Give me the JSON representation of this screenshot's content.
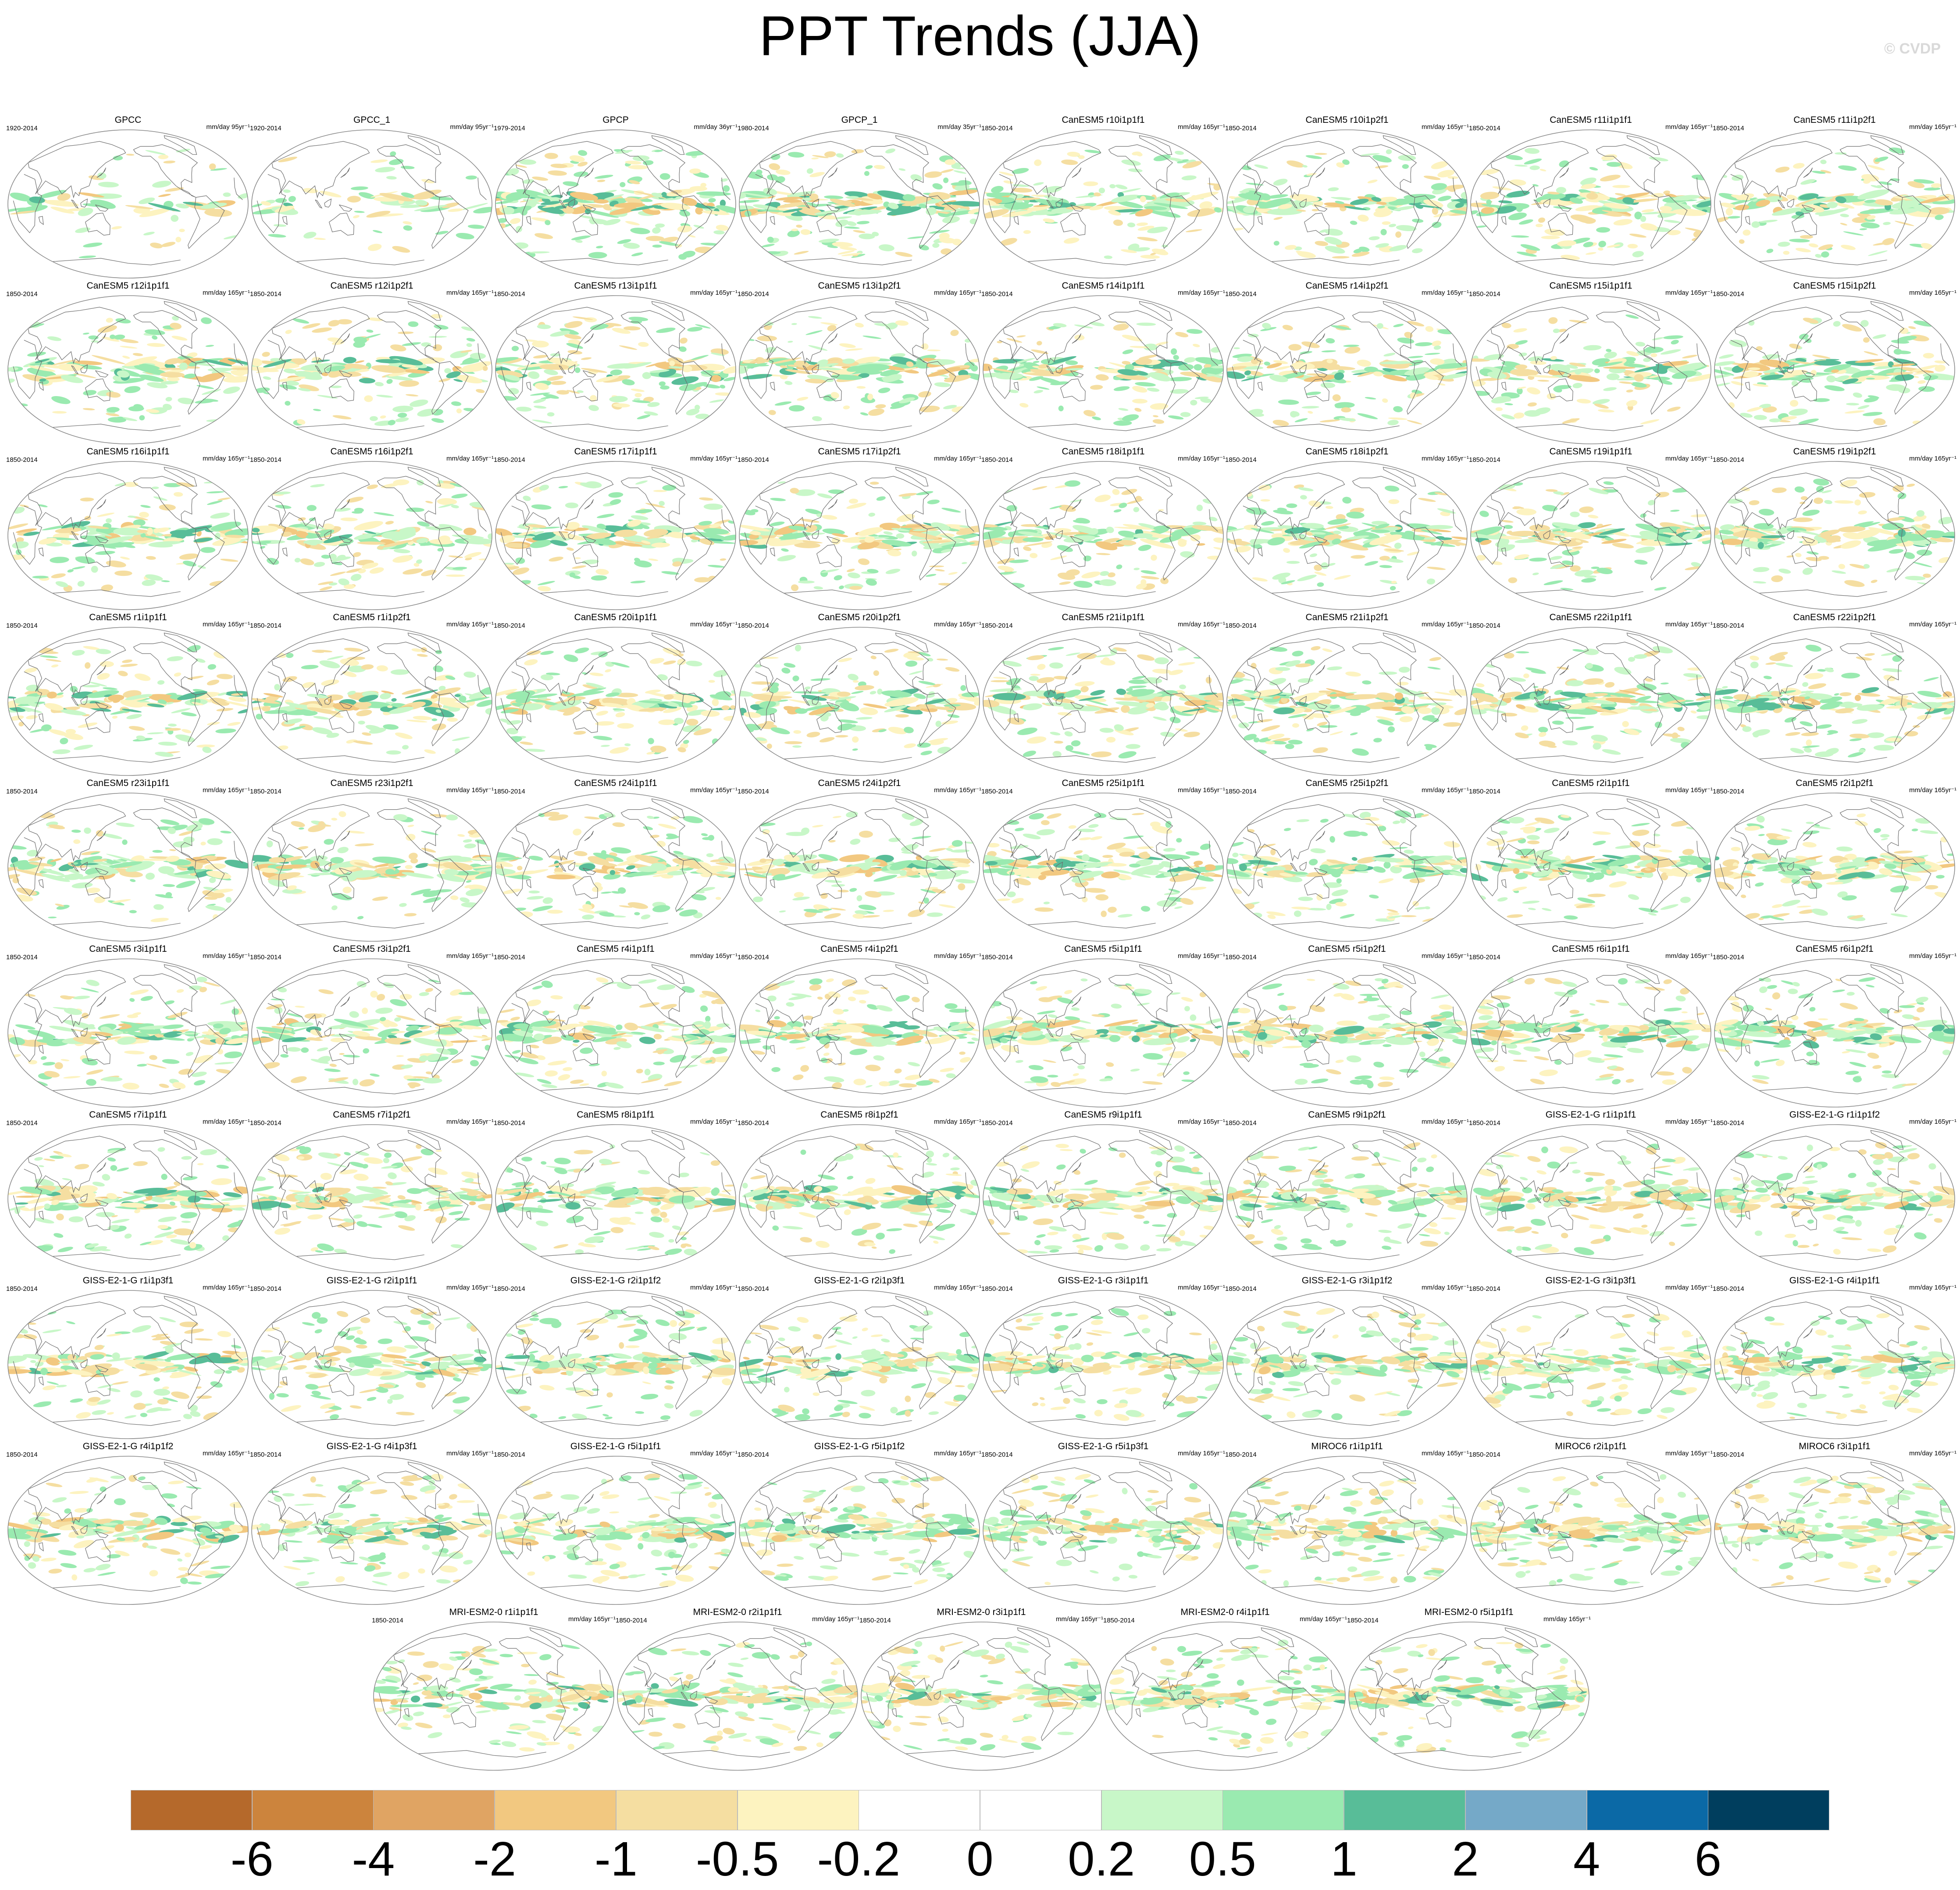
{
  "title": "PPT Trends (JJA)",
  "watermark": "© CVDP",
  "colorbar": {
    "labels": [
      "-6",
      "-4",
      "-2",
      "-1",
      "-0.5",
      "-0.2",
      "0",
      "0.2",
      "0.5",
      "1",
      "2",
      "4",
      "6"
    ],
    "colors": [
      "#b5692b",
      "#cc843d",
      "#e0a463",
      "#f2c880",
      "#f5dea1",
      "#fdf3c0",
      "#ffffff",
      "#ffffff",
      "#c8f7c8",
      "#9aeab0",
      "#58bd98",
      "#75a9c8",
      "#0b69a6",
      "#003e5e"
    ]
  },
  "chart_data": {
    "type": "map_panels",
    "variable": "PPT Trends (JJA)",
    "panels": [
      {
        "title": "GPCC",
        "period": "1920-2014",
        "units": "mm/day 95yr⁻¹"
      },
      {
        "title": "GPCC_1",
        "period": "1920-2014",
        "units": "mm/day 95yr⁻¹"
      },
      {
        "title": "GPCP",
        "period": "1979-2014",
        "units": "mm/day 36yr⁻¹"
      },
      {
        "title": "GPCP_1",
        "period": "1980-2014",
        "units": "mm/day 35yr⁻¹"
      },
      {
        "title": "CanESM5 r10i1p1f1",
        "period": "1850-2014",
        "units": "mm/day 165yr⁻¹"
      },
      {
        "title": "CanESM5 r10i1p2f1",
        "period": "1850-2014",
        "units": "mm/day 165yr⁻¹"
      },
      {
        "title": "CanESM5 r11i1p1f1",
        "period": "1850-2014",
        "units": "mm/day 165yr⁻¹"
      },
      {
        "title": "CanESM5 r11i1p2f1",
        "period": "1850-2014",
        "units": "mm/day 165yr⁻¹"
      },
      {
        "title": "CanESM5 r12i1p1f1",
        "period": "1850-2014",
        "units": "mm/day 165yr⁻¹"
      },
      {
        "title": "CanESM5 r12i1p2f1",
        "period": "1850-2014",
        "units": "mm/day 165yr⁻¹"
      },
      {
        "title": "CanESM5 r13i1p1f1",
        "period": "1850-2014",
        "units": "mm/day 165yr⁻¹"
      },
      {
        "title": "CanESM5 r13i1p2f1",
        "period": "1850-2014",
        "units": "mm/day 165yr⁻¹"
      },
      {
        "title": "CanESM5 r14i1p1f1",
        "period": "1850-2014",
        "units": "mm/day 165yr⁻¹"
      },
      {
        "title": "CanESM5 r14i1p2f1",
        "period": "1850-2014",
        "units": "mm/day 165yr⁻¹"
      },
      {
        "title": "CanESM5 r15i1p1f1",
        "period": "1850-2014",
        "units": "mm/day 165yr⁻¹"
      },
      {
        "title": "CanESM5 r15i1p2f1",
        "period": "1850-2014",
        "units": "mm/day 165yr⁻¹"
      },
      {
        "title": "CanESM5 r16i1p1f1",
        "period": "1850-2014",
        "units": "mm/day 165yr⁻¹"
      },
      {
        "title": "CanESM5 r16i1p2f1",
        "period": "1850-2014",
        "units": "mm/day 165yr⁻¹"
      },
      {
        "title": "CanESM5 r17i1p1f1",
        "period": "1850-2014",
        "units": "mm/day 165yr⁻¹"
      },
      {
        "title": "CanESM5 r17i1p2f1",
        "period": "1850-2014",
        "units": "mm/day 165yr⁻¹"
      },
      {
        "title": "CanESM5 r18i1p1f1",
        "period": "1850-2014",
        "units": "mm/day 165yr⁻¹"
      },
      {
        "title": "CanESM5 r18i1p2f1",
        "period": "1850-2014",
        "units": "mm/day 165yr⁻¹"
      },
      {
        "title": "CanESM5 r19i1p1f1",
        "period": "1850-2014",
        "units": "mm/day 165yr⁻¹"
      },
      {
        "title": "CanESM5 r19i1p2f1",
        "period": "1850-2014",
        "units": "mm/day 165yr⁻¹"
      },
      {
        "title": "CanESM5 r1i1p1f1",
        "period": "1850-2014",
        "units": "mm/day 165yr⁻¹"
      },
      {
        "title": "CanESM5 r1i1p2f1",
        "period": "1850-2014",
        "units": "mm/day 165yr⁻¹"
      },
      {
        "title": "CanESM5 r20i1p1f1",
        "period": "1850-2014",
        "units": "mm/day 165yr⁻¹"
      },
      {
        "title": "CanESM5 r20i1p2f1",
        "period": "1850-2014",
        "units": "mm/day 165yr⁻¹"
      },
      {
        "title": "CanESM5 r21i1p1f1",
        "period": "1850-2014",
        "units": "mm/day 165yr⁻¹"
      },
      {
        "title": "CanESM5 r21i1p2f1",
        "period": "1850-2014",
        "units": "mm/day 165yr⁻¹"
      },
      {
        "title": "CanESM5 r22i1p1f1",
        "period": "1850-2014",
        "units": "mm/day 165yr⁻¹"
      },
      {
        "title": "CanESM5 r22i1p2f1",
        "period": "1850-2014",
        "units": "mm/day 165yr⁻¹"
      },
      {
        "title": "CanESM5 r23i1p1f1",
        "period": "1850-2014",
        "units": "mm/day 165yr⁻¹"
      },
      {
        "title": "CanESM5 r23i1p2f1",
        "period": "1850-2014",
        "units": "mm/day 165yr⁻¹"
      },
      {
        "title": "CanESM5 r24i1p1f1",
        "period": "1850-2014",
        "units": "mm/day 165yr⁻¹"
      },
      {
        "title": "CanESM5 r24i1p2f1",
        "period": "1850-2014",
        "units": "mm/day 165yr⁻¹"
      },
      {
        "title": "CanESM5 r25i1p1f1",
        "period": "1850-2014",
        "units": "mm/day 165yr⁻¹"
      },
      {
        "title": "CanESM5 r25i1p2f1",
        "period": "1850-2014",
        "units": "mm/day 165yr⁻¹"
      },
      {
        "title": "CanESM5 r2i1p1f1",
        "period": "1850-2014",
        "units": "mm/day 165yr⁻¹"
      },
      {
        "title": "CanESM5 r2i1p2f1",
        "period": "1850-2014",
        "units": "mm/day 165yr⁻¹"
      },
      {
        "title": "CanESM5 r3i1p1f1",
        "period": "1850-2014",
        "units": "mm/day 165yr⁻¹"
      },
      {
        "title": "CanESM5 r3i1p2f1",
        "period": "1850-2014",
        "units": "mm/day 165yr⁻¹"
      },
      {
        "title": "CanESM5 r4i1p1f1",
        "period": "1850-2014",
        "units": "mm/day 165yr⁻¹"
      },
      {
        "title": "CanESM5 r4i1p2f1",
        "period": "1850-2014",
        "units": "mm/day 165yr⁻¹"
      },
      {
        "title": "CanESM5 r5i1p1f1",
        "period": "1850-2014",
        "units": "mm/day 165yr⁻¹"
      },
      {
        "title": "CanESM5 r5i1p2f1",
        "period": "1850-2014",
        "units": "mm/day 165yr⁻¹"
      },
      {
        "title": "CanESM5 r6i1p1f1",
        "period": "1850-2014",
        "units": "mm/day 165yr⁻¹"
      },
      {
        "title": "CanESM5 r6i1p2f1",
        "period": "1850-2014",
        "units": "mm/day 165yr⁻¹"
      },
      {
        "title": "CanESM5 r7i1p1f1",
        "period": "1850-2014",
        "units": "mm/day 165yr⁻¹"
      },
      {
        "title": "CanESM5 r7i1p2f1",
        "period": "1850-2014",
        "units": "mm/day 165yr⁻¹"
      },
      {
        "title": "CanESM5 r8i1p1f1",
        "period": "1850-2014",
        "units": "mm/day 165yr⁻¹"
      },
      {
        "title": "CanESM5 r8i1p2f1",
        "period": "1850-2014",
        "units": "mm/day 165yr⁻¹"
      },
      {
        "title": "CanESM5 r9i1p1f1",
        "period": "1850-2014",
        "units": "mm/day 165yr⁻¹"
      },
      {
        "title": "CanESM5 r9i1p2f1",
        "period": "1850-2014",
        "units": "mm/day 165yr⁻¹"
      },
      {
        "title": "GISS-E2-1-G r1i1p1f1",
        "period": "1850-2014",
        "units": "mm/day 165yr⁻¹"
      },
      {
        "title": "GISS-E2-1-G r1i1p1f2",
        "period": "1850-2014",
        "units": "mm/day 165yr⁻¹"
      },
      {
        "title": "GISS-E2-1-G r1i1p3f1",
        "period": "1850-2014",
        "units": "mm/day 165yr⁻¹"
      },
      {
        "title": "GISS-E2-1-G r2i1p1f1",
        "period": "1850-2014",
        "units": "mm/day 165yr⁻¹"
      },
      {
        "title": "GISS-E2-1-G r2i1p1f2",
        "period": "1850-2014",
        "units": "mm/day 165yr⁻¹"
      },
      {
        "title": "GISS-E2-1-G r2i1p3f1",
        "period": "1850-2014",
        "units": "mm/day 165yr⁻¹"
      },
      {
        "title": "GISS-E2-1-G r3i1p1f1",
        "period": "1850-2014",
        "units": "mm/day 165yr⁻¹"
      },
      {
        "title": "GISS-E2-1-G r3i1p1f2",
        "period": "1850-2014",
        "units": "mm/day 165yr⁻¹"
      },
      {
        "title": "GISS-E2-1-G r3i1p3f1",
        "period": "1850-2014",
        "units": "mm/day 165yr⁻¹"
      },
      {
        "title": "GISS-E2-1-G r4i1p1f1",
        "period": "1850-2014",
        "units": "mm/day 165yr⁻¹"
      },
      {
        "title": "GISS-E2-1-G r4i1p1f2",
        "period": "1850-2014",
        "units": "mm/day 165yr⁻¹"
      },
      {
        "title": "GISS-E2-1-G r4i1p3f1",
        "period": "1850-2014",
        "units": "mm/day 165yr⁻¹"
      },
      {
        "title": "GISS-E2-1-G r5i1p1f1",
        "period": "1850-2014",
        "units": "mm/day 165yr⁻¹"
      },
      {
        "title": "GISS-E2-1-G r5i1p1f2",
        "period": "1850-2014",
        "units": "mm/day 165yr⁻¹"
      },
      {
        "title": "GISS-E2-1-G r5i1p3f1",
        "period": "1850-2014",
        "units": "mm/day 165yr⁻¹"
      },
      {
        "title": "MIROC6 r1i1p1f1",
        "period": "1850-2014",
        "units": "mm/day 165yr⁻¹"
      },
      {
        "title": "MIROC6 r2i1p1f1",
        "period": "1850-2014",
        "units": "mm/day 165yr⁻¹"
      },
      {
        "title": "MIROC6 r3i1p1f1",
        "period": "1850-2014",
        "units": "mm/day 165yr⁻¹"
      },
      {
        "title": "MRI-ESM2-0 r1i1p1f1",
        "period": "1850-2014",
        "units": "mm/day 165yr⁻¹"
      },
      {
        "title": "MRI-ESM2-0 r2i1p1f1",
        "period": "1850-2014",
        "units": "mm/day 165yr⁻¹"
      },
      {
        "title": "MRI-ESM2-0 r3i1p1f1",
        "period": "1850-2014",
        "units": "mm/day 165yr⁻¹"
      },
      {
        "title": "MRI-ESM2-0 r4i1p1f1",
        "period": "1850-2014",
        "units": "mm/day 165yr⁻¹"
      },
      {
        "title": "MRI-ESM2-0 r5i1p1f1",
        "period": "1850-2014",
        "units": "mm/day 165yr⁻¹"
      }
    ]
  }
}
